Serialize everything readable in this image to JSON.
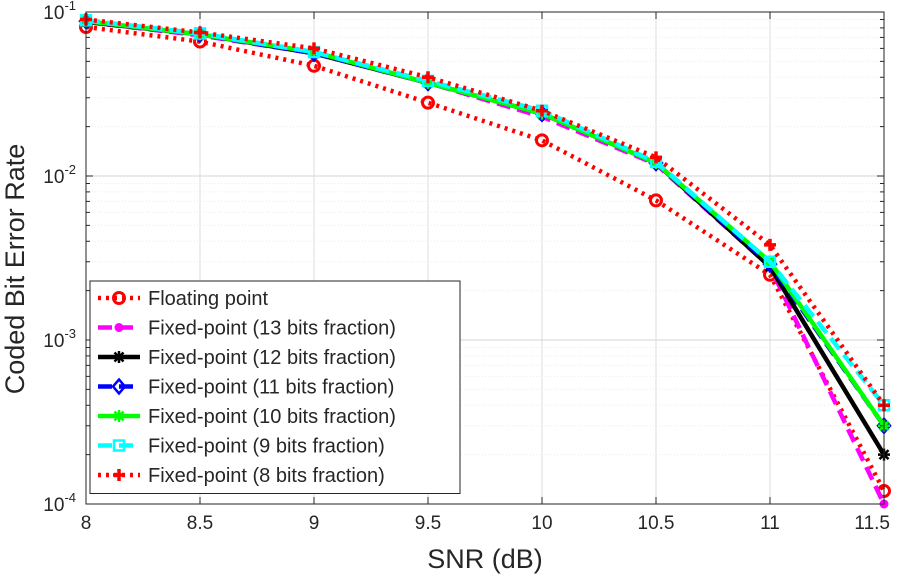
{
  "chart_data": {
    "type": "line",
    "title": "",
    "xlabel": "SNR (dB)",
    "ylabel": "Coded Bit Error Rate",
    "xscale": "linear",
    "yscale": "log",
    "xlim": [
      8,
      11.5
    ],
    "ylim": [
      0.0001,
      0.1
    ],
    "xticks": [
      8,
      8.5,
      9,
      9.5,
      10,
      10.5,
      11,
      11.5
    ],
    "xtick_labels": [
      "8",
      "8.5",
      "9",
      "9.5",
      "10",
      "10.5",
      "11",
      "11.5"
    ],
    "yticks": [
      {
        "value": 0.1,
        "base": "10",
        "exp": "-1"
      },
      {
        "value": 0.01,
        "base": "10",
        "exp": "-2"
      },
      {
        "value": 0.001,
        "base": "10",
        "exp": "-3"
      },
      {
        "value": 0.0001,
        "base": "10",
        "exp": "-4"
      }
    ],
    "grid": true,
    "legend_position": "bottom-left",
    "x": [
      8,
      8.5,
      9,
      9.5,
      10,
      10.5,
      11,
      11.5
    ],
    "series": [
      {
        "name": "Floating point",
        "color": "#ff0000",
        "dash": "dotted",
        "marker": "circle",
        "values": [
          0.081,
          0.066,
          0.047,
          0.028,
          0.0165,
          0.0071,
          0.0025,
          0.00012
        ]
      },
      {
        "name": "Fixed-point (13 bits fraction)",
        "color": "#ff00ff",
        "dash": "dashed",
        "marker": "dot",
        "values": [
          0.087,
          0.072,
          0.056,
          0.037,
          0.023,
          0.0118,
          0.0028,
          0.0001
        ]
      },
      {
        "name": "Fixed-point (12 bits fraction)",
        "color": "#000000",
        "dash": "solid",
        "marker": "star",
        "values": [
          0.087,
          0.073,
          0.056,
          0.037,
          0.024,
          0.012,
          0.0028,
          0.0002
        ]
      },
      {
        "name": "Fixed-point (11 bits fraction)",
        "color": "#0000ff",
        "dash": "dashed",
        "marker": "diamond",
        "values": [
          0.088,
          0.073,
          0.056,
          0.037,
          0.024,
          0.012,
          0.0029,
          0.0003
        ]
      },
      {
        "name": "Fixed-point (10 bits fraction)",
        "color": "#00ff00",
        "dash": "solid",
        "marker": "star",
        "values": [
          0.088,
          0.073,
          0.057,
          0.037,
          0.024,
          0.012,
          0.003,
          0.0003
        ]
      },
      {
        "name": "Fixed-point (9 bits fraction)",
        "color": "#00ffff",
        "dash": "dashed",
        "marker": "square",
        "values": [
          0.089,
          0.074,
          0.057,
          0.038,
          0.025,
          0.0122,
          0.003,
          0.0004
        ]
      },
      {
        "name": "Fixed-point (8 bits fraction)",
        "color": "#ff0000",
        "dash": "dotted",
        "marker": "plus",
        "values": [
          0.09,
          0.075,
          0.06,
          0.04,
          0.025,
          0.013,
          0.0038,
          0.0004
        ]
      }
    ]
  }
}
